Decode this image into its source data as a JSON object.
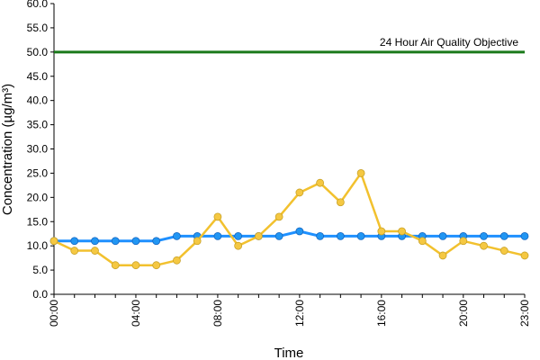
{
  "chart_data": {
    "type": "line",
    "xlabel": "Time",
    "ylabel": "Concentration (µg/m³)",
    "ylim": [
      0,
      60
    ],
    "y_ticks": [
      "0.0",
      "5.0",
      "10.0",
      "15.0",
      "20.0",
      "25.0",
      "30.0",
      "35.0",
      "40.0",
      "45.0",
      "50.0",
      "55.0",
      "60.0"
    ],
    "x_tick_labels": [
      "00:00",
      "04:00",
      "08:00",
      "12:00",
      "16:00",
      "20:00",
      "23:00"
    ],
    "x_tick_hours": [
      0,
      4,
      8,
      12,
      16,
      20,
      23
    ],
    "x": [
      0,
      1,
      2,
      3,
      4,
      5,
      6,
      7,
      8,
      9,
      10,
      11,
      12,
      13,
      14,
      15,
      16,
      17,
      18,
      19,
      20,
      21,
      22,
      23
    ],
    "grid": false,
    "series": [
      {
        "color": "#1e90ff",
        "marker": "#2196f3",
        "values": [
          11,
          11,
          11,
          11,
          11,
          11,
          12,
          12,
          12,
          12,
          12,
          12,
          13,
          12,
          12,
          12,
          12,
          12,
          12,
          12,
          12,
          12,
          12,
          12
        ]
      },
      {
        "color": "#f2c12e",
        "marker": "#f5c842",
        "values": [
          11,
          9,
          9,
          6,
          6,
          6,
          7,
          11,
          16,
          10,
          12,
          16,
          21,
          23,
          19,
          25,
          13,
          13,
          11,
          8,
          11,
          10,
          9,
          8
        ]
      }
    ],
    "objective": {
      "value": 50,
      "label": "24 Hour Air Quality Objective",
      "color": "#1a7a1a"
    }
  }
}
